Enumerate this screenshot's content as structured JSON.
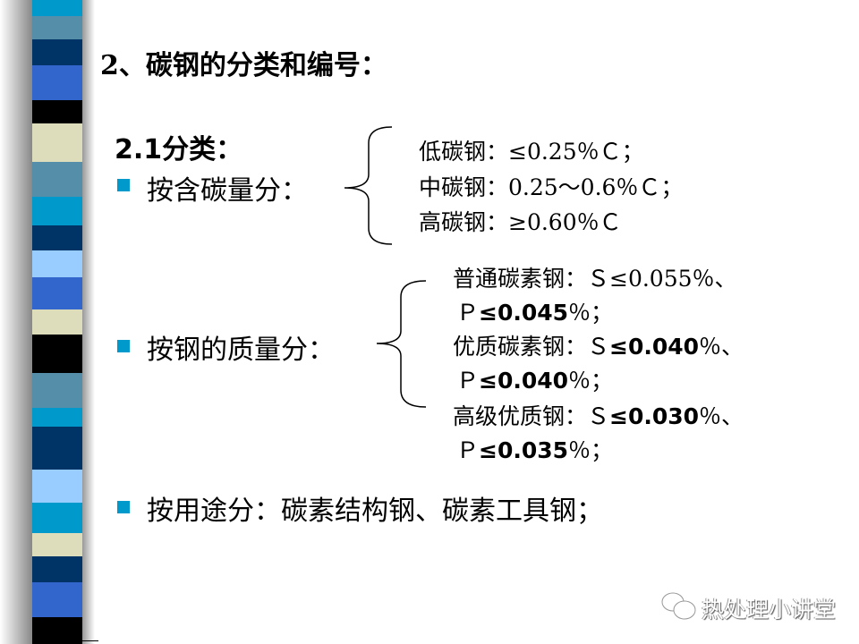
{
  "title": "2、碳钢的分类和编号：",
  "subtitle": "2.1分类：",
  "stripe_colors": [
    "#0099cc",
    "#558ea8",
    "#003366",
    "#3366cc",
    "#000000",
    "#ddddbb",
    "#558ea8",
    "#0099cc",
    "#003366",
    "#99ccff",
    "#3366cc",
    "#ddddbb",
    "#000000",
    "#558ea8",
    "#0099cc",
    "#003366",
    "#99ccff",
    "#0099cc",
    "#ddddbb",
    "#003366",
    "#3366cc",
    "#000000"
  ],
  "accent": "#0099cc",
  "sections": [
    {
      "label": "按含碳量分：",
      "items": [
        "低碳钢：≤0.25％Ｃ；",
        "中碳钢：0.25～0.6％Ｃ；",
        "高碳钢：≥0.60％Ｃ"
      ]
    },
    {
      "label": "按钢的质量分：",
      "items": [
        {
          "a": "普通碳素钢：Ｓ≤0.055％、"
        },
        {
          "a": "Ｐ",
          "b": "≤0.045",
          "c": "％；"
        },
        {
          "a": "优质碳素钢：Ｓ",
          "b": "≤0.040",
          "c": "％、"
        },
        {
          "a": "Ｐ",
          "b": "≤0.040",
          "c": "％；"
        },
        {
          "a": "高级优质钢：Ｓ",
          "b": "≤0.030",
          "c": "％、"
        },
        {
          "a": "Ｐ",
          "b": "≤0.035",
          "c": "％；"
        }
      ]
    },
    {
      "label": "按用途分：碳素结构钢、碳素工具钢；"
    }
  ],
  "watermark": "热处理小讲堂"
}
